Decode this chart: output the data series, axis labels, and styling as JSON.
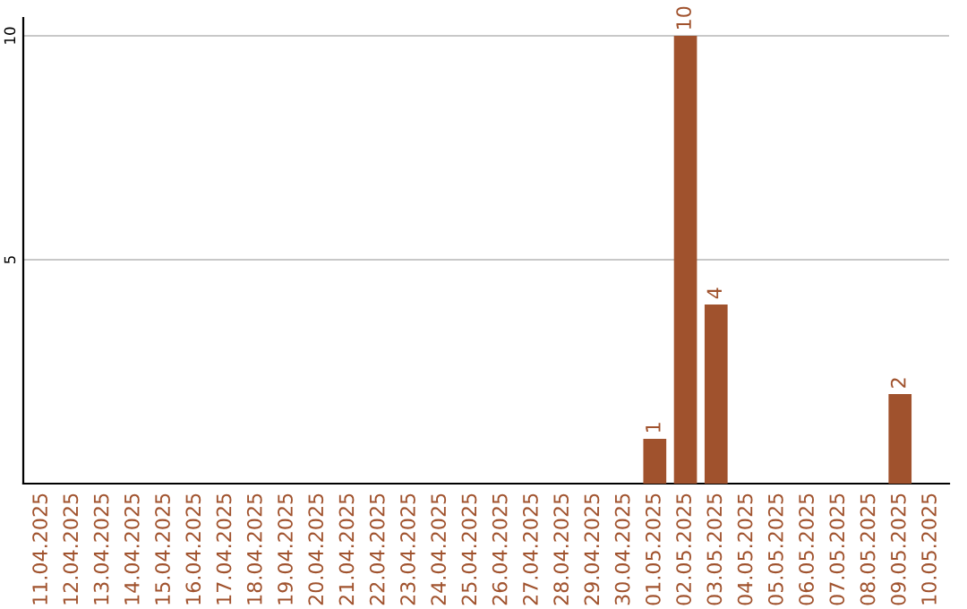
{
  "chart_data": {
    "type": "bar",
    "categories": [
      "11.04.2025",
      "12.04.2025",
      "13.04.2025",
      "14.04.2025",
      "15.04.2025",
      "16.04.2025",
      "17.04.2025",
      "18.04.2025",
      "19.04.2025",
      "20.04.2025",
      "21.04.2025",
      "22.04.2025",
      "23.04.2025",
      "24.04.2025",
      "25.04.2025",
      "26.04.2025",
      "27.04.2025",
      "28.04.2025",
      "29.04.2025",
      "30.04.2025",
      "01.05.2025",
      "02.05.2025",
      "03.05.2025",
      "04.05.2025",
      "05.05.2025",
      "06.05.2025",
      "07.05.2025",
      "08.05.2025",
      "09.05.2025",
      "10.05.2025"
    ],
    "series": [
      {
        "color": "#a0522d",
        "values": [
          0,
          0,
          0,
          0,
          0,
          0,
          0,
          0,
          0,
          0,
          0,
          0,
          0,
          0,
          0,
          0,
          0,
          0,
          0,
          0,
          1,
          10,
          4,
          0,
          0,
          0,
          0,
          0,
          2,
          0
        ],
        "value_labels": [
          null,
          null,
          null,
          null,
          null,
          null,
          null,
          null,
          null,
          null,
          null,
          null,
          null,
          null,
          null,
          null,
          null,
          null,
          null,
          null,
          "1",
          "10",
          "4",
          null,
          null,
          null,
          null,
          null,
          "2",
          null
        ]
      }
    ],
    "ylim": [
      0,
      10.4
    ],
    "yticks": [
      5,
      10
    ],
    "grid": "y",
    "legend": false
  }
}
